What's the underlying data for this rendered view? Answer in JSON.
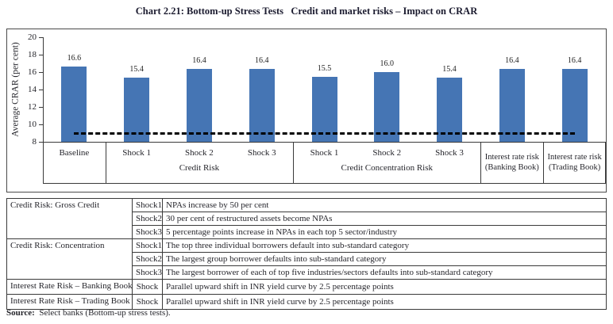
{
  "page": {
    "title": "Chart 2.21: Bottom-up Stress Tests   Credit and market risks – Impact on CRAR",
    "source_label": "Source:",
    "source_text": "Select banks (Bottom-up stress tests)."
  },
  "chart_data": {
    "type": "bar",
    "title": "Chart 2.21: Bottom-up Stress Tests   Credit and market risks – Impact on CRAR",
    "ylabel": "Average CRAR (per cent)",
    "xlabel": "",
    "ylim": [
      8,
      20
    ],
    "yticks": [
      20,
      18,
      16,
      14,
      12,
      10,
      8
    ],
    "grid": false,
    "legend": "none",
    "bar_color": "#4575b4",
    "categories": [
      "Baseline",
      "Shock 1",
      "Shock 2",
      "Shock 3",
      "Shock 1",
      "Shock 2",
      "Shock 3",
      "Interest rate risk (Banking Book)",
      "Interest rate risk (Trading Book)"
    ],
    "slot_labels": [
      "Baseline",
      "Shock 1",
      "Shock 2",
      "Shock 3",
      "Shock 1",
      "Shock 2",
      "Shock 3",
      "",
      ""
    ],
    "values": [
      16.6,
      15.4,
      16.4,
      16.4,
      15.5,
      16.0,
      15.4,
      16.4,
      16.4
    ],
    "groups": [
      {
        "label": "",
        "start": 0,
        "span": 1
      },
      {
        "label": "Credit Risk",
        "start": 1,
        "span": 3
      },
      {
        "label": "Credit Concentration Risk",
        "start": 4,
        "span": 3
      },
      {
        "label": "",
        "start": 7,
        "span": 1,
        "lines": [
          "Interest rate risk",
          "(Banking Book)"
        ]
      },
      {
        "label": "",
        "start": 8,
        "span": 1,
        "lines": [
          "Interest rate risk",
          "(Trading Book)"
        ]
      }
    ],
    "reference_line": {
      "value": 9,
      "style": "dashed",
      "color": "#000000"
    }
  },
  "table": {
    "rows": [
      {
        "group": "Credit Risk: Gross Credit",
        "shock": "Shock1",
        "desc": "NPAs increase by 50 per cent"
      },
      {
        "shock": "Shock2",
        "desc": "30 per cent of restructured assets become NPAs"
      },
      {
        "shock": "Shock3",
        "desc": "5 percentage points increase in NPAs in each top 5 sector/industry"
      },
      {
        "group": "Credit Risk: Concentration",
        "shock": "Shock1",
        "desc": "The top three individual borrowers default into sub-standard category"
      },
      {
        "shock": "Shock2",
        "desc": "The largest group borrower defaults into sub-standard category"
      },
      {
        "shock": "Shock3",
        "desc": "The largest borrower of each of top five industries/sectors defaults into sub-standard category"
      },
      {
        "group": "Interest Rate Risk – Banking Book",
        "shock": "Shock",
        "desc": "Parallel upward shift in INR yield curve by 2.5 percentage points"
      },
      {
        "group": "Interest Rate Risk – Trading Book",
        "shock": "Shock",
        "desc": "Parallel upward shift in INR yield curve by 2.5 percentage points"
      }
    ]
  }
}
